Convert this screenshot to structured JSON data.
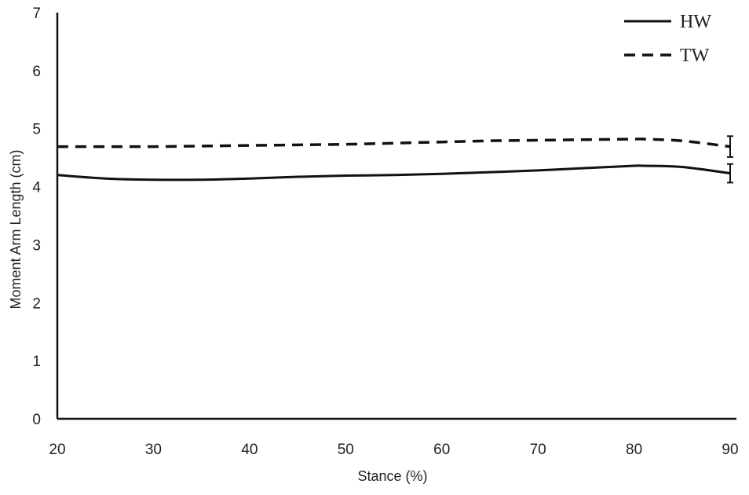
{
  "chart_data": {
    "type": "line",
    "title": "",
    "xlabel": "Stance (%)",
    "ylabel": "Moment Arm Length (cm)",
    "xlim": [
      20,
      90
    ],
    "ylim": [
      0,
      7
    ],
    "x_ticks": [
      20,
      30,
      40,
      50,
      60,
      70,
      80,
      90
    ],
    "y_ticks": [
      0,
      1,
      2,
      3,
      4,
      5,
      6,
      7
    ],
    "grid": false,
    "legend_position": "top-right",
    "series": [
      {
        "name": "HW",
        "line_style": "solid",
        "x": [
          20,
          25,
          30,
          35,
          40,
          45,
          50,
          55,
          60,
          65,
          70,
          75,
          80,
          81,
          85,
          90
        ],
        "y": [
          4.2,
          4.14,
          4.12,
          4.12,
          4.14,
          4.17,
          4.19,
          4.2,
          4.22,
          4.25,
          4.28,
          4.32,
          4.36,
          4.36,
          4.34,
          4.23
        ],
        "error_bar": {
          "x": 90,
          "y": 4.23,
          "err": 0.16
        }
      },
      {
        "name": "TW",
        "line_style": "dashed",
        "x": [
          20,
          25,
          30,
          35,
          40,
          45,
          50,
          55,
          60,
          65,
          70,
          75,
          80,
          81,
          85,
          90
        ],
        "y": [
          4.69,
          4.69,
          4.69,
          4.7,
          4.71,
          4.72,
          4.73,
          4.75,
          4.77,
          4.79,
          4.8,
          4.81,
          4.82,
          4.82,
          4.79,
          4.69
        ],
        "error_bar": {
          "x": 90,
          "y": 4.69,
          "err": 0.18
        }
      }
    ]
  }
}
